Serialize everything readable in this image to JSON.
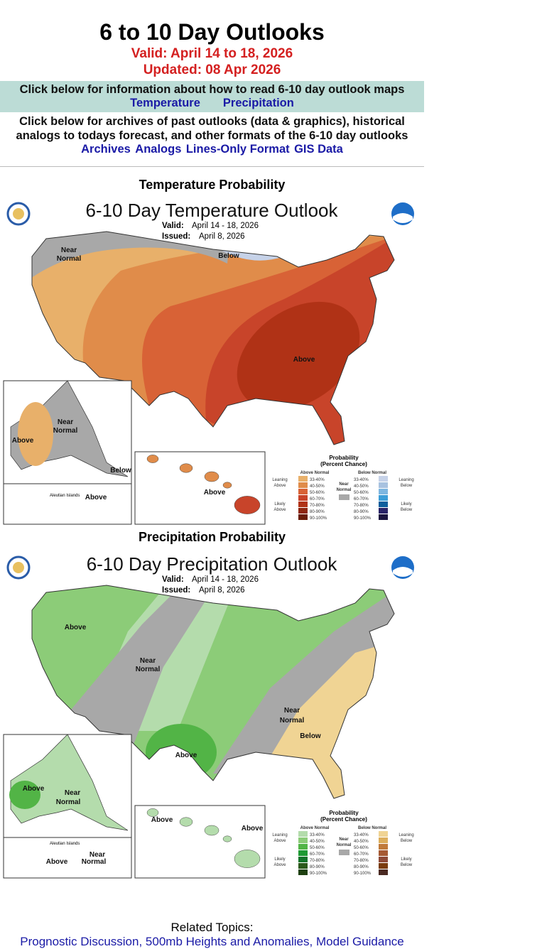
{
  "header": {
    "title": "6 to 10 Day Outlooks",
    "valid": "Valid: April 14 to 18, 2026",
    "updated": "Updated: 08 Apr 2026"
  },
  "howto": {
    "text": "Click below for information about how to read 6-10 day outlook maps",
    "links": [
      "Temperature",
      "Precipitation"
    ]
  },
  "archives": {
    "text": "Click below for archives of past outlooks (data & graphics), historical analogs to todays forecast, and other formats of the 6-10 day outlooks",
    "links": [
      "Archives",
      "Analogs",
      "Lines-Only Format",
      "GIS Data"
    ]
  },
  "temp": {
    "heading": "Temperature Probability",
    "title": "6-10 Day Temperature Outlook",
    "valid_label": "Valid:",
    "valid": "April 14 - 18, 2026",
    "issued_label": "Issued:",
    "issued": "April 8, 2026",
    "labels": {
      "near": "Near",
      "normal": "Normal",
      "below": "Below",
      "above": "Above",
      "ak_near": "Near",
      "ak_normal": "Normal",
      "ak_above": "Above",
      "ak_below": "Below",
      "aleutian": "Aleutian Islands",
      "aleutian_above": "Above",
      "hi_above": "Above"
    },
    "legend": {
      "title": "Probability",
      "subtitle": "(Percent Chance)",
      "above_head": "Above Normal",
      "below_head": "Below Normal",
      "near1": "Near",
      "near2": "Normal",
      "lean_above": [
        "Leaning",
        "Above"
      ],
      "likely_above": [
        "Likely",
        "Above"
      ],
      "lean_below": [
        "Leaning",
        "Below"
      ],
      "likely_below": [
        "Likely",
        "Below"
      ],
      "ranges": [
        "33-40%",
        "40-50%",
        "50-60%",
        "60-70%",
        "70-80%",
        "80-90%",
        "90-100%"
      ],
      "above_colors": [
        "#e8b06a",
        "#e08c4a",
        "#d86236",
        "#c8442a",
        "#b03216",
        "#8e2610",
        "#6a1c08"
      ],
      "below_colors": [
        "#c6d2e8",
        "#a8c2e0",
        "#7eb6e0",
        "#3e9ed8",
        "#0e5e9c",
        "#2a2468",
        "#1c1640"
      ],
      "near_color": "#a8a8a8"
    }
  },
  "precip": {
    "heading": "Precipitation Probability",
    "title": "6-10 Day Precipitation Outlook",
    "valid_label": "Valid:",
    "valid": "April 14 - 18, 2026",
    "issued_label": "Issued:",
    "issued": "April 8, 2026",
    "labels": {
      "above": "Above",
      "near": "Near",
      "normal": "Normal",
      "near2": "Near",
      "normal2": "Normal",
      "below": "Below",
      "tx_above": "Above",
      "ak_above": "Above",
      "ak_near": "Near",
      "ak_normal": "Normal",
      "aleutian": "Aleutian Islands",
      "al_above": "Above",
      "al_near": "Near",
      "al_normal": "Normal",
      "hi_above": "Above",
      "hi_above2": "Above"
    },
    "legend": {
      "title": "Probability",
      "subtitle": "(Percent Chance)",
      "above_head": "Above Normal",
      "below_head": "Below Normal",
      "near1": "Near",
      "near2": "Normal",
      "lean_above": [
        "Leaning",
        "Above"
      ],
      "likely_above": [
        "Likely",
        "Above"
      ],
      "lean_below": [
        "Leaning",
        "Below"
      ],
      "likely_below": [
        "Likely",
        "Below"
      ],
      "ranges": [
        "33-40%",
        "40-50%",
        "50-60%",
        "60-70%",
        "70-80%",
        "80-90%",
        "90-100%"
      ],
      "above_colors": [
        "#b4dcac",
        "#8ccc78",
        "#52b446",
        "#1e9a34",
        "#12742a",
        "#2c5a1c",
        "#1e4010"
      ],
      "below_colors": [
        "#f0d494",
        "#dcae5c",
        "#c07a3a",
        "#a65a34",
        "#8e4a38",
        "#7a3c0e",
        "#4a2a22"
      ],
      "near_color": "#a8a8a8"
    }
  },
  "related": {
    "label": "Related Topics:",
    "links": "Prognostic Discussion, 500mb Heights and Anomalies, Model Guidance"
  }
}
